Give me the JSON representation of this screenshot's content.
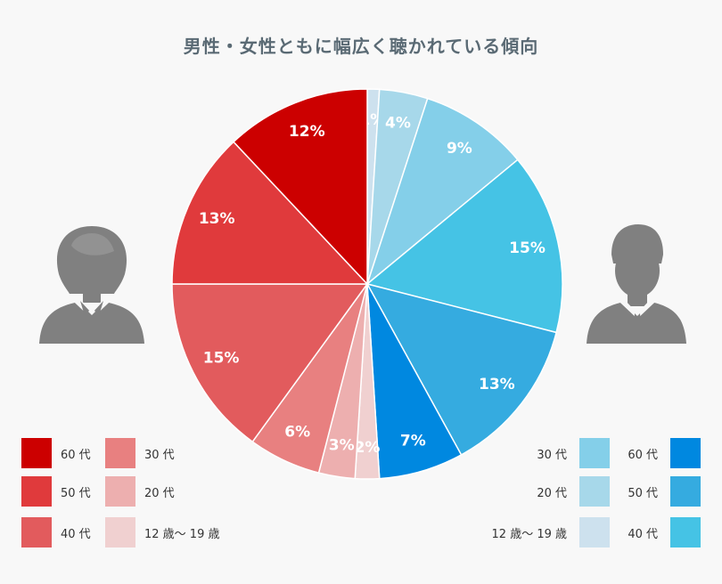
{
  "title": "男性・女性ともに幅広く聴かれている傾向",
  "colors": {
    "female": {
      "60": "#cc0000",
      "50": "#e03a3c",
      "40": "#e25b5d",
      "30": "#e88080",
      "20": "#edafaf",
      "12to19": "#f0d0d0"
    },
    "male": {
      "60": "#0088e0",
      "50": "#35abe0",
      "40": "#45c3e5",
      "30": "#84cfe9",
      "20": "#a7d8ea",
      "12to19": "#cde1ee"
    },
    "icon": "#808080"
  },
  "icons": {
    "female": "woman-avatar-icon",
    "male": "man-avatar-icon"
  },
  "chart_data": {
    "type": "pie",
    "title": "男性・女性ともに幅広く聴かれている傾向",
    "slices": [
      {
        "group": "male",
        "label": "12 歳〜 19 歳",
        "value": 1,
        "text": "1%",
        "color": "#cde1ee"
      },
      {
        "group": "male",
        "label": "20 代",
        "value": 4,
        "text": "4%",
        "color": "#a7d8ea"
      },
      {
        "group": "male",
        "label": "30 代",
        "value": 9,
        "text": "9%",
        "color": "#84cfe9"
      },
      {
        "group": "male",
        "label": "40 代",
        "value": 15,
        "text": "15%",
        "color": "#45c3e5"
      },
      {
        "group": "male",
        "label": "50 代",
        "value": 13,
        "text": "13%",
        "color": "#35abe0"
      },
      {
        "group": "male",
        "label": "60 代",
        "value": 7,
        "text": "7%",
        "color": "#0088e0"
      },
      {
        "group": "female",
        "label": "12 歳〜 19 歳",
        "value": 2,
        "text": "2%",
        "color": "#f0d0d0"
      },
      {
        "group": "female",
        "label": "20 代",
        "value": 3,
        "text": "3%",
        "color": "#edafaf"
      },
      {
        "group": "female",
        "label": "30 代",
        "value": 6,
        "text": "6%",
        "color": "#e88080"
      },
      {
        "group": "female",
        "label": "40 代",
        "value": 15,
        "text": "15%",
        "color": "#e25b5d"
      },
      {
        "group": "female",
        "label": "50 代",
        "value": 13,
        "text": "13%",
        "color": "#e03a3c"
      },
      {
        "group": "female",
        "label": "60 代",
        "value": 12,
        "text": "12%",
        "color": "#cc0000"
      }
    ],
    "legend_female": [
      {
        "label": "60 代",
        "color": "#cc0000"
      },
      {
        "label": "50 代",
        "color": "#e03a3c"
      },
      {
        "label": "40 代",
        "color": "#e25b5d"
      },
      {
        "label": "30 代",
        "color": "#e88080"
      },
      {
        "label": "20 代",
        "color": "#edafaf"
      },
      {
        "label": "12 歳〜 19 歳",
        "color": "#f0d0d0"
      }
    ],
    "legend_male": [
      {
        "label": "30 代",
        "color": "#84cfe9"
      },
      {
        "label": "20 代",
        "color": "#a7d8ea"
      },
      {
        "label": "12 歳〜 19 歳",
        "color": "#cde1ee"
      },
      {
        "label": "60 代",
        "color": "#0088e0"
      },
      {
        "label": "50 代",
        "color": "#35abe0"
      },
      {
        "label": "40 代",
        "color": "#45c3e5"
      }
    ]
  }
}
